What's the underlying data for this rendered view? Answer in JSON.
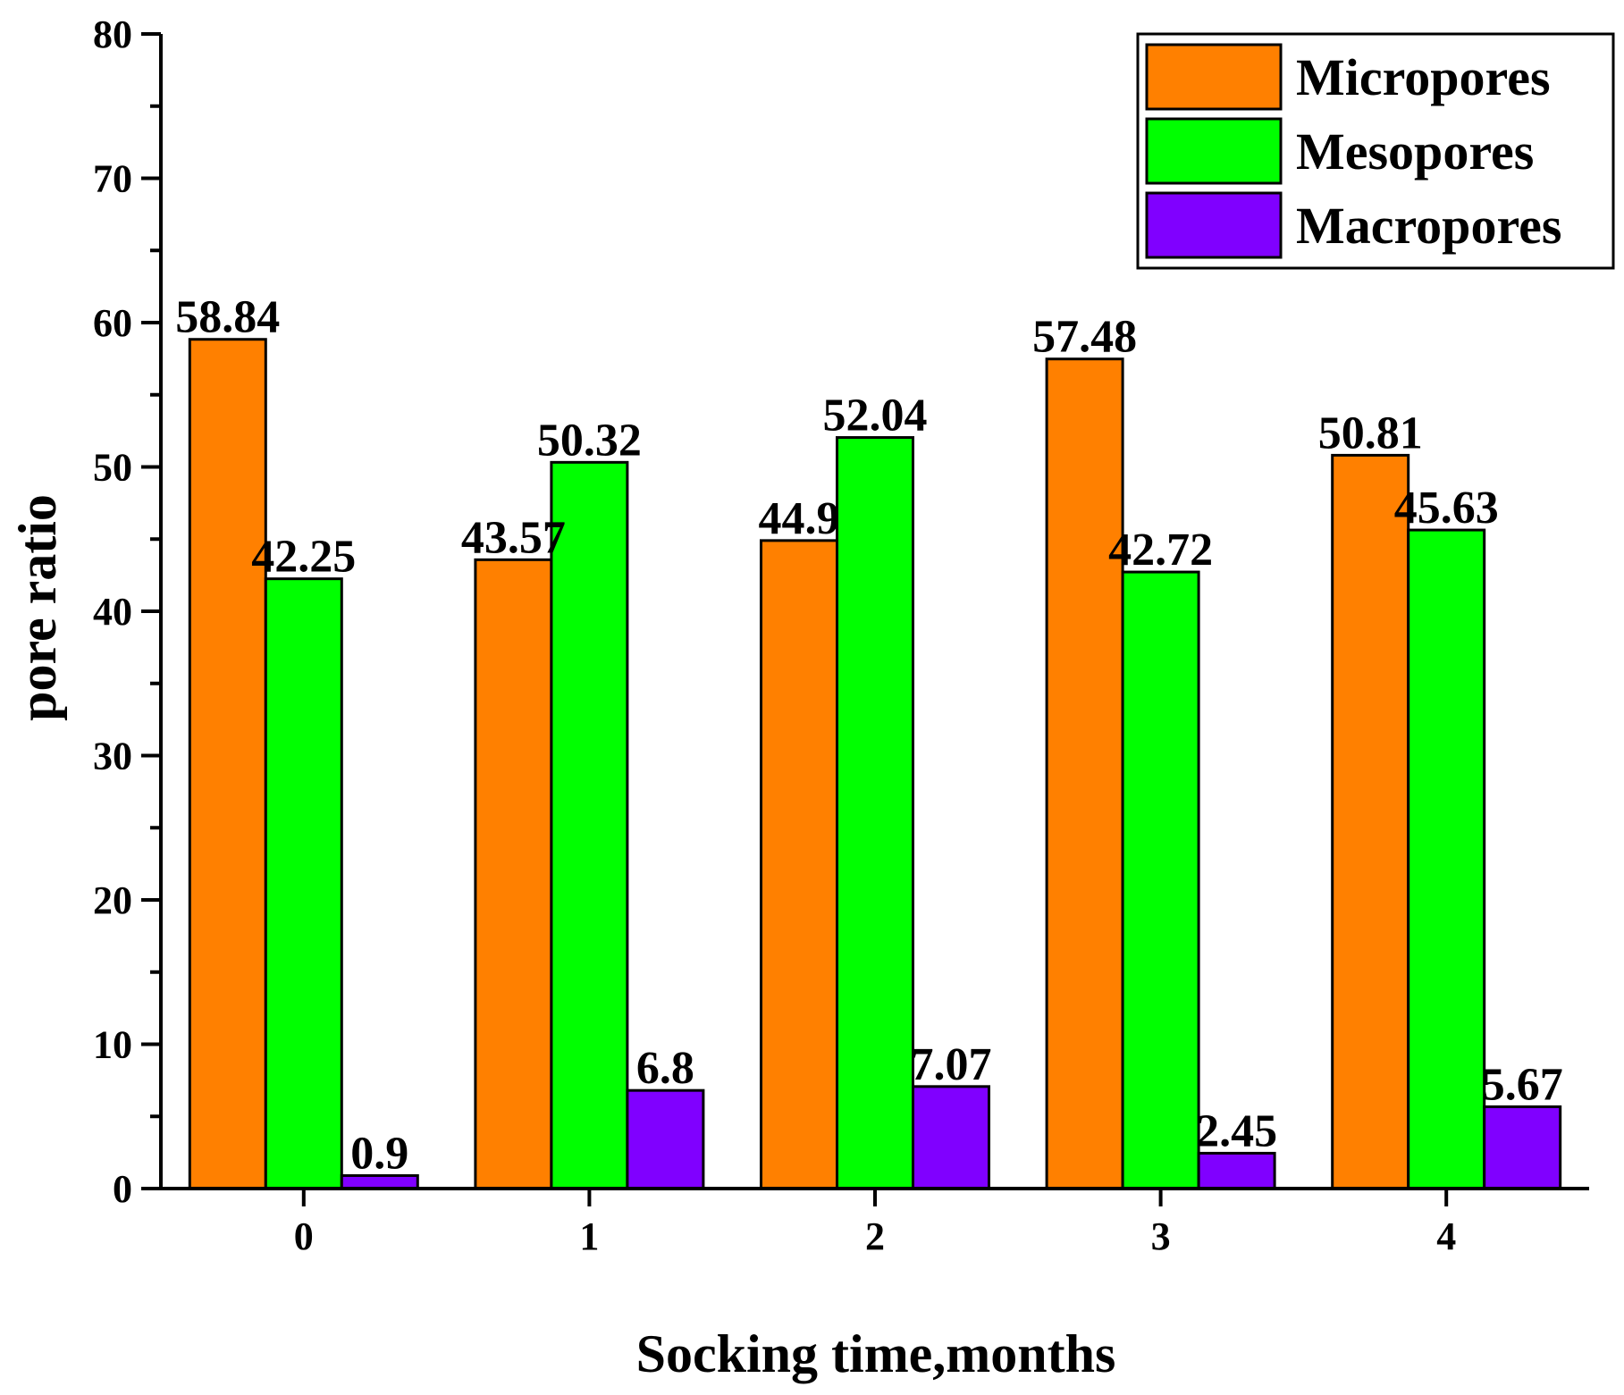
{
  "chart_data": {
    "type": "bar",
    "categories": [
      "0",
      "1",
      "2",
      "3",
      "4"
    ],
    "series": [
      {
        "name": "Micropores",
        "color": "#FF8000",
        "values": [
          58.84,
          43.57,
          44.9,
          57.48,
          50.81
        ],
        "labels": [
          "58.84",
          "43.57",
          "44.9",
          "57.48",
          "50.81"
        ]
      },
      {
        "name": "Mesopores",
        "color": "#00FF00",
        "values": [
          42.25,
          50.32,
          52.04,
          42.72,
          45.63
        ],
        "labels": [
          "42.25",
          "50.32",
          "52.04",
          "42.72",
          "45.63"
        ]
      },
      {
        "name": "Macropores",
        "color": "#8000FF",
        "values": [
          0.9,
          6.8,
          7.07,
          2.45,
          5.67
        ],
        "labels": [
          "0.9",
          "6.8",
          "7.07",
          "2.45",
          "5.67"
        ]
      }
    ],
    "xlabel": "Socking time,months",
    "ylabel": "pore ratio",
    "ylim": [
      0,
      80
    ],
    "yticks": [
      "0",
      "10",
      "20",
      "30",
      "40",
      "50",
      "60",
      "70",
      "80"
    ],
    "legend_position": "top-right",
    "grid": false
  }
}
